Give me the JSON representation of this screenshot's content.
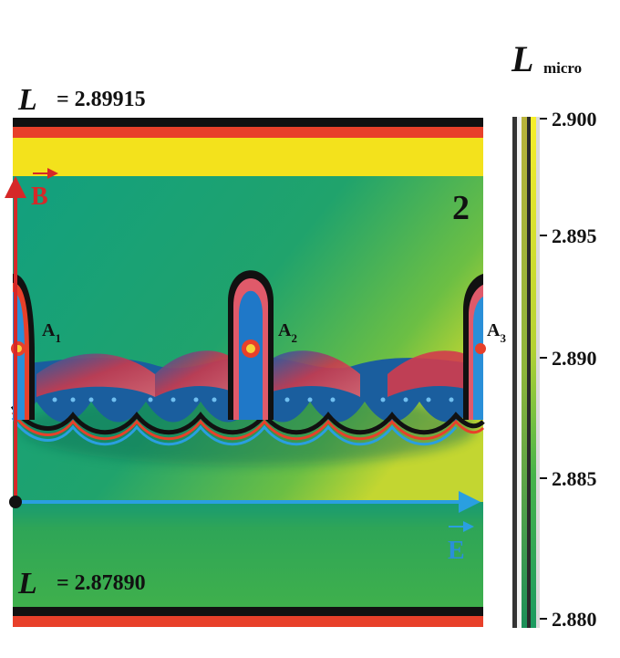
{
  "panel": {
    "top_label": "= 2.89915",
    "bottom_label": "= 2.87890",
    "panel_number": "2",
    "b_vector": "B",
    "e_vector": "E",
    "markers": [
      {
        "name": "A",
        "sub": "1"
      },
      {
        "name": "A",
        "sub": "2"
      },
      {
        "name": "A",
        "sub": "3"
      }
    ]
  },
  "colorbar": {
    "title_sub": "micro",
    "ticks": [
      "2.900",
      "2.895",
      "2.890",
      "2.885",
      "2.880"
    ]
  },
  "symbol": "L",
  "colors": {
    "black": "#111111",
    "red": "#e8402a",
    "yellow": "#f3e21c",
    "green": "#3daf4b",
    "teal": "#12a587",
    "field_red": "#cf2f2a",
    "field_blue": "#2a8fd8"
  }
}
